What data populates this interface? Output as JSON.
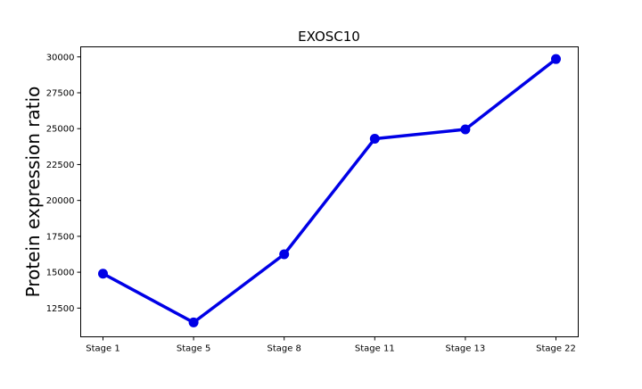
{
  "chart_data": {
    "type": "line",
    "title": "EXOSC10",
    "xlabel": "",
    "ylabel": "Protein expression ratio",
    "categories": [
      "Stage 1",
      "Stage 5",
      "Stage 8",
      "Stage 11",
      "Stage 13",
      "Stage 22"
    ],
    "series": [
      {
        "values": [
          14900,
          11500,
          16250,
          24300,
          24950,
          29850
        ],
        "color": "#0000e6"
      }
    ],
    "yticks": [
      12500,
      15000,
      17500,
      20000,
      22500,
      25000,
      27500,
      30000
    ],
    "ylim": [
      10500,
      30700
    ],
    "grid": false,
    "legend": "none"
  }
}
